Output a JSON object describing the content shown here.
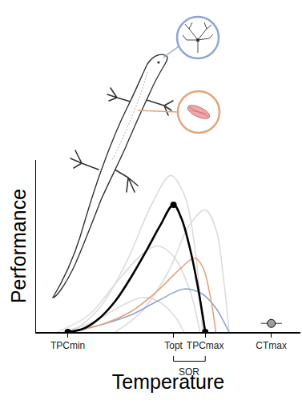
{
  "chart_data": {
    "type": "line",
    "x_label": "Temperature",
    "y_label": "Performance",
    "xlim": [
      0,
      100
    ],
    "ylim": [
      0,
      100
    ],
    "xticks": [
      {
        "value": 12,
        "label": "TPCmin"
      },
      {
        "value": 52,
        "label": "Topt"
      },
      {
        "value": 64,
        "label": "TPCmax"
      },
      {
        "value": 89,
        "label": "CTmax"
      }
    ],
    "yticks": [],
    "tick_labels": "x",
    "grid": false,
    "series": [
      {
        "type": "line",
        "color": "#dcdcdc",
        "line_style": "solid",
        "x": [
          14,
          24,
          34,
          44,
          51,
          56,
          60,
          63
        ],
        "values": [
          0,
          14,
          40,
          75,
          91,
          80,
          50,
          0
        ]
      },
      {
        "type": "line",
        "color": "#dcdcdc",
        "line_style": "solid",
        "x": [
          30,
          40,
          50,
          58,
          64,
          68,
          71,
          73
        ],
        "values": [
          0,
          12,
          35,
          62,
          71,
          60,
          30,
          0
        ]
      },
      {
        "type": "line",
        "color": "#dcdcdc",
        "line_style": "solid",
        "x": [
          8,
          20,
          30,
          40,
          46,
          52,
          58,
          62
        ],
        "values": [
          0,
          10,
          28,
          45,
          50,
          44,
          25,
          0
        ]
      },
      {
        "type": "line",
        "color": "#dcdcdc",
        "line_style": "solid",
        "x": [
          10,
          22,
          32,
          40,
          46,
          52,
          56
        ],
        "values": [
          0,
          6,
          15,
          20,
          18,
          10,
          0
        ]
      },
      {
        "type": "line",
        "color": "#8ea4d6",
        "line_style": "solid",
        "x": [
          12,
          24,
          36,
          46,
          56,
          63,
          68,
          71,
          73
        ],
        "values": [
          0,
          4,
          10,
          18,
          25,
          22,
          14,
          6,
          0
        ]
      },
      {
        "type": "line",
        "color": "#e2a47c",
        "line_style": "solid",
        "x": [
          12,
          24,
          36,
          46,
          54,
          60,
          63,
          66,
          68
        ],
        "values": [
          0,
          4,
          12,
          24,
          36,
          43,
          38,
          20,
          0
        ]
      },
      {
        "type": "line",
        "color": "#000000",
        "line_style": "solid",
        "x": [
          12,
          18,
          24,
          30,
          36,
          42,
          47,
          52,
          55,
          58,
          61,
          64
        ],
        "values": [
          0,
          2,
          8,
          18,
          32,
          48,
          62,
          74,
          66,
          50,
          28,
          0
        ]
      },
      {
        "type": "scatter",
        "color": "#000000",
        "marker": "circle",
        "x": [
          12,
          52,
          64
        ],
        "values": [
          0,
          74,
          0
        ]
      },
      {
        "type": "scatter",
        "color": "#9e9e9e",
        "marker": "circle",
        "x": [
          89
        ],
        "values": [
          5
        ],
        "x_error": [
          4
        ]
      }
    ],
    "annotations": [
      {
        "text": "SOR",
        "x": [
          52,
          64
        ]
      }
    ]
  }
}
